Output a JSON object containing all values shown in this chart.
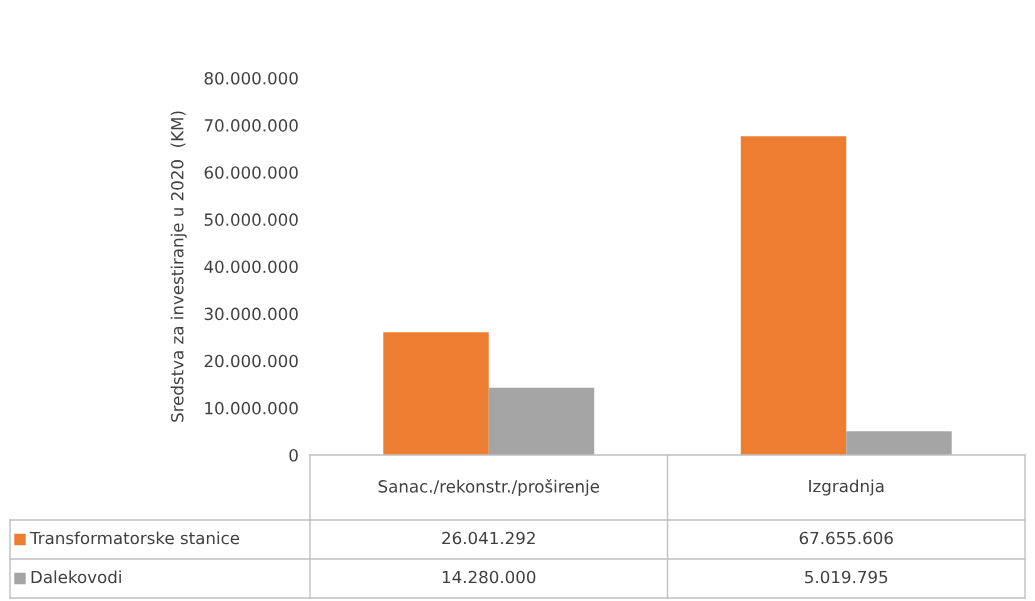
{
  "chart_data": {
    "type": "bar",
    "ylabel": "Sredstva za investiranje u 2020  (KM)",
    "categories": [
      "Sanac./rekonstr./proširenje",
      "Izgradnja"
    ],
    "series": [
      {
        "name": "Transformatorske stanice",
        "color": "#ed7d31",
        "values": [
          26041292,
          67655606
        ],
        "value_labels": [
          "26.041.292",
          "67.655.606"
        ]
      },
      {
        "name": "Dalekovodi",
        "color": "#a5a5a5",
        "values": [
          14280000,
          5019795
        ],
        "value_labels": [
          "14.280.000",
          "5.019.795"
        ]
      }
    ],
    "ylim": [
      0,
      80000000
    ],
    "yticks": [
      {
        "value": 0,
        "label": "0"
      },
      {
        "value": 10000000,
        "label": "10.000.000"
      },
      {
        "value": 20000000,
        "label": "20.000.000"
      },
      {
        "value": 30000000,
        "label": "30.000.000"
      },
      {
        "value": 40000000,
        "label": "40.000.000"
      },
      {
        "value": 50000000,
        "label": "50.000.000"
      },
      {
        "value": 60000000,
        "label": "60.000.000"
      },
      {
        "value": 70000000,
        "label": "70.000.000"
      },
      {
        "value": 80000000,
        "label": "80.000.000"
      }
    ],
    "grid": false,
    "legend": "bottom"
  }
}
